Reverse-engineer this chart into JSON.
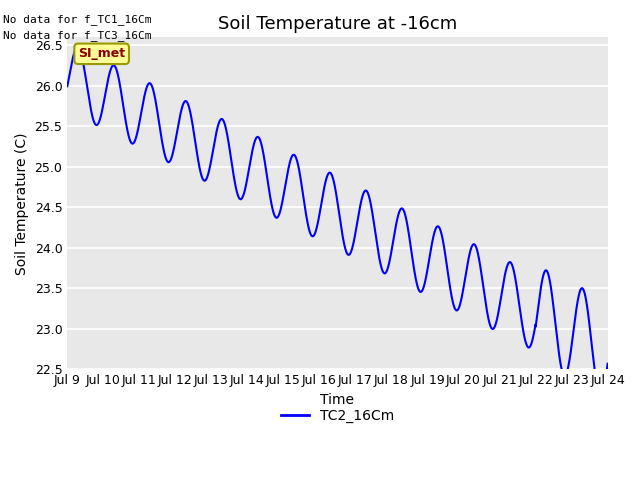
{
  "title": "Soil Temperature at -16cm",
  "xlabel": "Time",
  "ylabel": "Soil Temperature (C)",
  "line_color": "#0000FF",
  "line_width": 1.5,
  "bg_color": "#E8E8E8",
  "ylim": [
    22.5,
    26.6
  ],
  "no_data_texts": [
    "No data for f_TC1_16Cm",
    "No data for f_TC3_16Cm"
  ],
  "legend_label": "TC2_16Cm",
  "legend_box_label": "SI_met",
  "legend_box_facecolor": "#FFFF99",
  "legend_box_edgecolor": "#999900",
  "legend_box_text_color": "#880000",
  "x_tick_labels": [
    "Jul 9",
    "Jul 10",
    "Jul 11",
    "Jul 12",
    "Jul 13",
    "Jul 14",
    "Jul 15",
    "Jul 16",
    "Jul 17",
    "Jul 18",
    "Jul 19",
    "Jul 20",
    "Jul 21",
    "Jul 22",
    "Jul 23",
    "Jul 24"
  ],
  "title_fontsize": 13,
  "axis_fontsize": 10,
  "tick_fontsize": 9,
  "grid_color": "#FFFFFF",
  "yticks": [
    22.5,
    23.0,
    23.5,
    24.0,
    24.5,
    25.0,
    25.5,
    26.0,
    26.5
  ]
}
